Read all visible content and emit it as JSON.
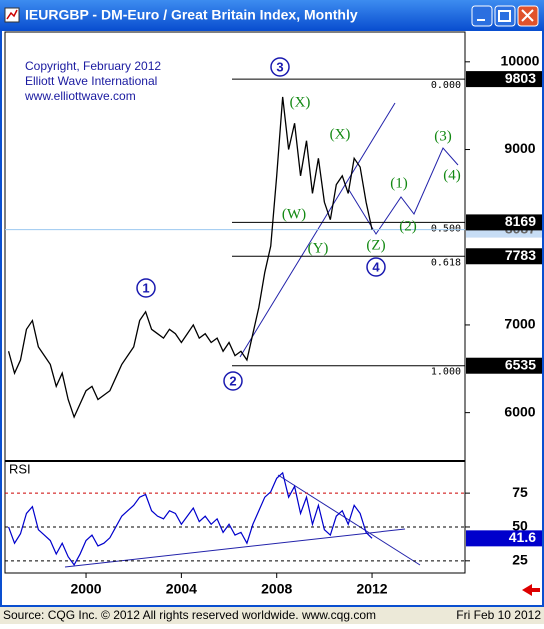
{
  "window_title": "IEURGBP - DM-Euro / Great Britain Index, Monthly",
  "notes": [
    "Copyright, February 2012",
    "Elliott Wave International",
    "www.elliottwave.com"
  ],
  "wave_labels": [
    "3",
    "1",
    "2",
    "4"
  ],
  "subwave_labels": [
    "(X)",
    "(W)",
    "(Y)",
    "(X)",
    "(Z)",
    "(1)",
    "(2)",
    "(3)",
    "(4)"
  ],
  "footer": {
    "source": "Source: CQG Inc. © 2012 All rights reserved worldwide. www.cqg.com",
    "date": "Fri Feb 10 2012"
  },
  "chart_data": [
    {
      "type": "line",
      "color": "#000000",
      "x": [
        1996.75,
        1997,
        1997.25,
        1997.5,
        1997.75,
        1998,
        1998.25,
        1998.5,
        1998.75,
        1999,
        1999.25,
        1999.5,
        1999.75,
        2000,
        2000.25,
        2000.5,
        2000.75,
        2001,
        2001.25,
        2001.5,
        2001.75,
        2002,
        2002.25,
        2002.5,
        2002.75,
        2003,
        2003.25,
        2003.5,
        2003.75,
        2004,
        2004.25,
        2004.5,
        2004.75,
        2005,
        2005.25,
        2005.5,
        2005.75,
        2006,
        2006.25,
        2006.5,
        2006.75,
        2007,
        2007.25,
        2007.5,
        2007.75,
        2008,
        2008.25,
        2008.5,
        2008.75,
        2009,
        2009.25,
        2009.5,
        2009.75,
        2010,
        2010.25,
        2010.5,
        2010.75,
        2011,
        2011.25,
        2011.5,
        2011.75,
        2012
      ],
      "values": [
        6700,
        6450,
        6600,
        6950,
        7050,
        6750,
        6650,
        6550,
        6300,
        6450,
        6150,
        5950,
        6100,
        6250,
        6300,
        6150,
        6200,
        6250,
        6400,
        6550,
        6650,
        6750,
        7050,
        7150,
        6950,
        6900,
        6850,
        6950,
        6900,
        6800,
        6900,
        7000,
        6850,
        6900,
        6800,
        6850,
        6700,
        6800,
        6650,
        6700,
        6600,
        6900,
        7200,
        7600,
        7900,
        8700,
        9600,
        9000,
        9300,
        8700,
        9100,
        8500,
        8900,
        8400,
        8200,
        8600,
        8700,
        8500,
        8900,
        8800,
        8400,
        8087
      ],
      "xlim": [
        1996.6,
        2015.9
      ],
      "ylim": [
        5460,
        10340
      ],
      "yticks": [
        6000,
        7000,
        9000,
        10000
      ],
      "levels": [
        {
          "price": 9803,
          "ratio": "0.000"
        },
        {
          "price": 8169,
          "ratio": "0.500"
        },
        {
          "price": 7783,
          "ratio": "0.618"
        },
        {
          "price": 6535,
          "ratio": "1.000"
        }
      ]
    },
    {
      "type": "line",
      "title": "RSI",
      "color": "#0000cc",
      "x": [
        1996.75,
        1997,
        1997.25,
        1997.5,
        1997.75,
        1998,
        1998.25,
        1998.5,
        1998.75,
        1999,
        1999.25,
        1999.5,
        1999.75,
        2000,
        2000.25,
        2000.5,
        2000.75,
        2001,
        2001.25,
        2001.5,
        2001.75,
        2002,
        2002.25,
        2002.5,
        2002.75,
        2003,
        2003.25,
        2003.5,
        2003.75,
        2004,
        2004.25,
        2004.5,
        2004.75,
        2005,
        2005.25,
        2005.5,
        2005.75,
        2006,
        2006.25,
        2006.5,
        2006.75,
        2007,
        2007.25,
        2007.5,
        2007.75,
        2008,
        2008.25,
        2008.5,
        2008.75,
        2009,
        2009.25,
        2009.5,
        2009.75,
        2010,
        2010.25,
        2010.5,
        2010.75,
        2011,
        2011.25,
        2011.5,
        2011.75,
        2012
      ],
      "values": [
        50,
        38,
        45,
        60,
        65,
        48,
        44,
        40,
        30,
        38,
        28,
        22,
        30,
        40,
        44,
        36,
        38,
        42,
        50,
        58,
        62,
        66,
        72,
        74,
        62,
        58,
        56,
        62,
        60,
        52,
        58,
        64,
        54,
        58,
        52,
        56,
        46,
        52,
        44,
        46,
        38,
        52,
        62,
        72,
        76,
        86,
        90,
        72,
        80,
        60,
        72,
        52,
        66,
        48,
        44,
        58,
        62,
        52,
        66,
        60,
        46,
        41.6
      ],
      "xlim": [
        1996.6,
        2015.9
      ],
      "ylim": [
        16,
        98
      ],
      "yticks": [
        25,
        50,
        75
      ],
      "xticks": [
        2000,
        2004,
        2008,
        2012
      ]
    }
  ]
}
